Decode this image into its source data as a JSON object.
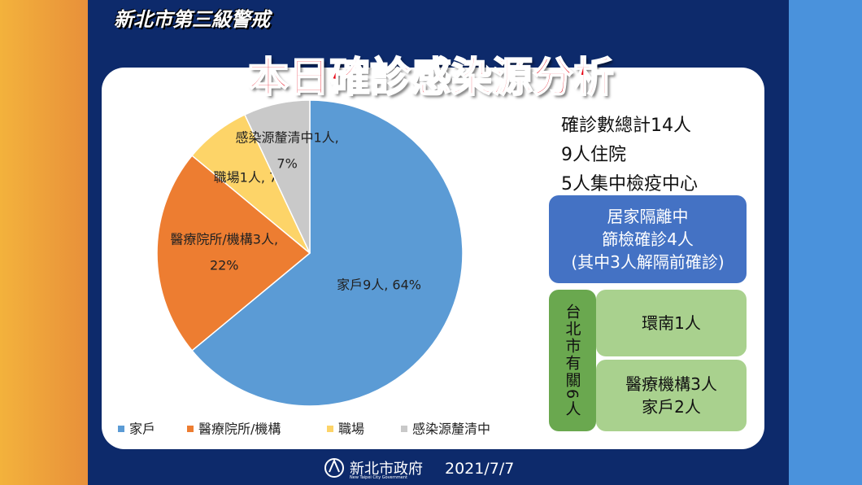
{
  "header": {
    "banner": "新北市第三級警戒",
    "title": "本日確診感染源分析"
  },
  "chart_data": {
    "type": "pie",
    "categories": [
      "家戶",
      "醫療院所/機構",
      "職場",
      "感染源釐清中"
    ],
    "values": [
      64,
      22,
      7,
      7
    ],
    "value_labels": [
      [
        "家戶9人, 64%"
      ],
      [
        "醫療院所/機構3人,",
        "22%"
      ],
      [
        "職場1人, 7%"
      ],
      [
        "感染源釐清中1人,",
        "7%"
      ]
    ],
    "colors": [
      "#5b9bd5",
      "#ed7d31",
      "#fdd468",
      "#c9c9c9"
    ],
    "legend": "bottom"
  },
  "summary": [
    "確診數總計14人",
    "9人住院",
    "5人集中檢疫中心"
  ],
  "home_box": [
    "居家隔離中",
    "篩檢確診4人",
    "(其中3人解隔前確診)"
  ],
  "taipei": {
    "label": "台北市有關6人",
    "items": [
      [
        "環南1人"
      ],
      [
        "醫療機構3人",
        "家戶2人"
      ]
    ]
  },
  "footer": {
    "org": "新北市政府",
    "org_en": "New Taipei City Government",
    "date": "2021/7/7"
  }
}
